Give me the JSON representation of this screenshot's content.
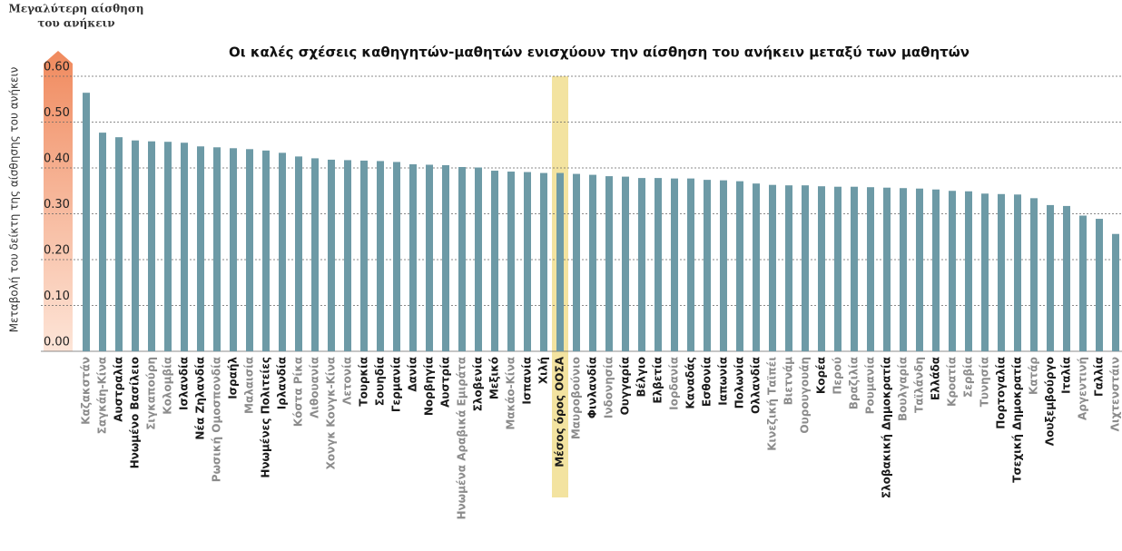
{
  "chart_data": {
    "type": "bar",
    "title": "Οι καλές σχέσεις καθηγητών-μαθητών ενισχύουν την αίσθηση του ανήκειν μεταξύ των μαθητών",
    "y_label": "Μεταβολή του δείκτη της αίσθησης του ανήκειν",
    "annotation": [
      "Μεγαλύτερη αίσθηση",
      "του ανήκειν"
    ],
    "categories": [
      "Καζακστάν",
      "Σαγκάη-Κίνα",
      "Αυστραλία",
      "Ηνωμένο Βασίλειο",
      "Σιγκαπούρη",
      "Κολομβία",
      "Ισλανδία",
      "Νέα Ζηλανδία",
      "Ρωσική Ομοσπονδία",
      "Ισραήλ",
      "Μαλαισία",
      "Ηνωμένες Πολιτείες",
      "Ιρλανδία",
      "Κόστα Ρίκα",
      "Λιθουανία",
      "Χονγκ Κονγκ-Κίνα",
      "Λετονία",
      "Τουρκία",
      "Σουηδία",
      "Γερμανία",
      "Δανία",
      "Νορβηγία",
      "Αυστρία",
      "Ηνωμένα Αραβικά Εμιράτα",
      "Σλοβενία",
      "Μεξικό",
      "Μακάο-Κίνα",
      "Ισπανία",
      "Χιλή",
      "Μέσος όρος ΟΟΣΑ",
      "Μαυροβούνιο",
      "Φινλανδία",
      "Ινδονησία",
      "Ουγγαρία",
      "Βέλγιο",
      "Ελβετία",
      "Ιορδανία",
      "Καναδάς",
      "Εσθονία",
      "Ιαπωνία",
      "Πολωνία",
      "Ολλανδία",
      "Κινεζική Ταϊπέι",
      "Βιετνάμ",
      "Ουρουγουάη",
      "Κορέα",
      "Περού",
      "Βραζιλία",
      "Ρουμανία",
      "Σλοβακική Δημοκρατία",
      "Βουλγαρία",
      "Ταϊλάνδη",
      "Ελλάδα",
      "Κροατία",
      "Σερβία",
      "Τυνησία",
      "Πορτογαλία",
      "Τσεχική Δημοκρατία",
      "Κατάρ",
      "Λουξεμβούργο",
      "Ιταλία",
      "Αργεντινή",
      "Γαλλία",
      "Λιχτενστάιν"
    ],
    "values": [
      0.564,
      0.477,
      0.467,
      0.46,
      0.458,
      0.457,
      0.455,
      0.447,
      0.445,
      0.443,
      0.441,
      0.438,
      0.433,
      0.425,
      0.421,
      0.418,
      0.417,
      0.416,
      0.415,
      0.413,
      0.408,
      0.407,
      0.406,
      0.402,
      0.401,
      0.394,
      0.392,
      0.391,
      0.389,
      0.389,
      0.387,
      0.385,
      0.382,
      0.381,
      0.378,
      0.378,
      0.377,
      0.377,
      0.374,
      0.373,
      0.371,
      0.366,
      0.363,
      0.362,
      0.362,
      0.36,
      0.359,
      0.359,
      0.358,
      0.357,
      0.356,
      0.355,
      0.353,
      0.35,
      0.349,
      0.344,
      0.343,
      0.342,
      0.334,
      0.319,
      0.317,
      0.296,
      0.289,
      0.256
    ],
    "label_colors": [
      "#8c8c8c",
      "#8c8c8c",
      "#1a1a1a",
      "#1a1a1a",
      "#8c8c8c",
      "#8c8c8c",
      "#1a1a1a",
      "#1a1a1a",
      "#8c8c8c",
      "#1a1a1a",
      "#8c8c8c",
      "#1a1a1a",
      "#1a1a1a",
      "#8c8c8c",
      "#8c8c8c",
      "#8c8c8c",
      "#8c8c8c",
      "#1a1a1a",
      "#1a1a1a",
      "#1a1a1a",
      "#1a1a1a",
      "#1a1a1a",
      "#1a1a1a",
      "#8c8c8c",
      "#1a1a1a",
      "#1a1a1a",
      "#8c8c8c",
      "#1a1a1a",
      "#1a1a1a",
      "#1a1a1a",
      "#8c8c8c",
      "#1a1a1a",
      "#8c8c8c",
      "#1a1a1a",
      "#1a1a1a",
      "#1a1a1a",
      "#8c8c8c",
      "#1a1a1a",
      "#1a1a1a",
      "#1a1a1a",
      "#1a1a1a",
      "#1a1a1a",
      "#8c8c8c",
      "#8c8c8c",
      "#8c8c8c",
      "#1a1a1a",
      "#8c8c8c",
      "#8c8c8c",
      "#8c8c8c",
      "#1a1a1a",
      "#8c8c8c",
      "#8c8c8c",
      "#1a1a1a",
      "#8c8c8c",
      "#8c8c8c",
      "#8c8c8c",
      "#1a1a1a",
      "#1a1a1a",
      "#8c8c8c",
      "#1a1a1a",
      "#1a1a1a",
      "#8c8c8c",
      "#1a1a1a",
      "#8c8c8c"
    ],
    "color": "#6d9aa6",
    "highlight_index": 29,
    "highlight_color": "#f3e3a0",
    "ylim": [
      0,
      0.6
    ],
    "yticks": [
      {
        "value": 0,
        "label": "0.00"
      },
      {
        "value": 0.1,
        "label": "0.10"
      },
      {
        "value": 0.2,
        "label": "0.20"
      },
      {
        "value": 0.3,
        "label": "0.30"
      },
      {
        "value": 0.4,
        "label": "0.40"
      },
      {
        "value": 0.5,
        "label": "0.50"
      },
      {
        "value": 0.6,
        "label": "0.60"
      }
    ],
    "grid": true
  }
}
